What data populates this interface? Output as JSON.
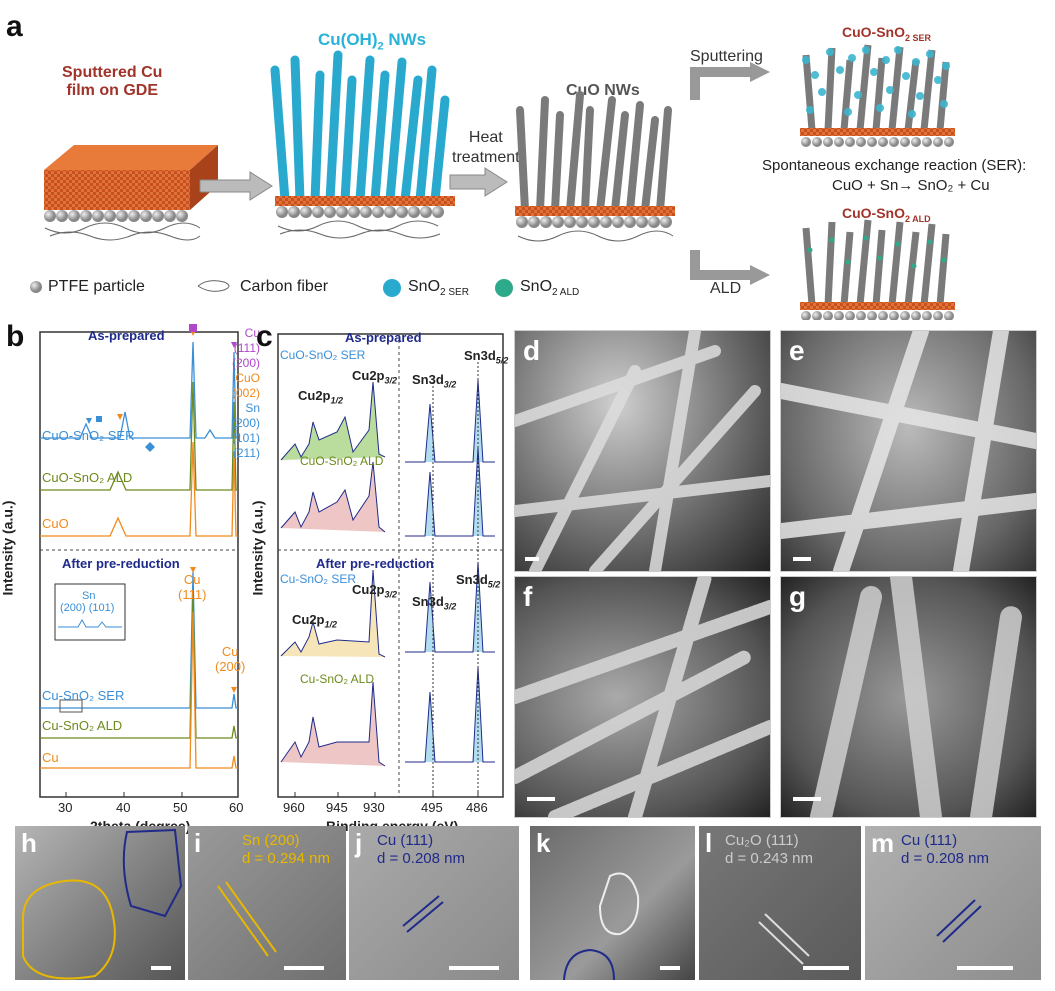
{
  "panel_labels": {
    "a": "a",
    "b": "b",
    "c": "c",
    "d": "d",
    "e": "e",
    "f": "f",
    "g": "g",
    "h": "h",
    "i": "i",
    "j": "j",
    "k": "k",
    "l": "l",
    "m": "m"
  },
  "schematic": {
    "cu_film_line1": "Sputtered Cu",
    "cu_film_line2": "film on GDE",
    "cuoh2_label": "Cu(OH)",
    "cuoh2_sub": "2",
    "cuoh2_suffix": " NWs",
    "heat_line1": "Heat",
    "heat_line2": "treatment",
    "cuo_label": "CuO NWs",
    "sputtering": "Sputtering",
    "ald": "ALD",
    "ser_product": "CuO-SnO",
    "ser_product_sub": "2 SER",
    "ald_product": "CuO-SnO",
    "ald_product_sub": "2 ALD",
    "ser_reaction_title": "Spontaneous exchange reaction (SER):",
    "ser_reaction_eq": "CuO + Sn→ SnO₂ + Cu",
    "legend_ptfe": "PTFE particle",
    "legend_carbon": "Carbon fiber",
    "legend_sno2_ser": "SnO",
    "legend_sno2_ser_sub": "2 SER",
    "legend_sno2_ald": "SnO",
    "legend_sno2_ald_sub": "2 ALD",
    "colors": {
      "cu": "#c8501e",
      "cuoh2": "#2aa9cf",
      "cuo": "#7a7a7a",
      "ser": "#3bb6cf",
      "ald": "#2eaa8a",
      "ptfe": "#b5b5b5"
    }
  },
  "xrd": {
    "as_prepared": "As-prepared",
    "after": "After pre-reduction",
    "ylabel": "Intensity (a.u.)",
    "xlabel": "2theta (degree)",
    "xticks": [
      "30",
      "40",
      "50",
      "60"
    ],
    "curves_top": [
      "CuO-SnO₂ SER",
      "CuO-SnO₂ ALD",
      "CuO"
    ],
    "curves_bottom": [
      "Cu-SnO₂ SER",
      "Cu-SnO₂ ALD",
      "Cu"
    ],
    "legend_cu": "Cu",
    "legend_cu_111": "(111)",
    "legend_cu_200": "(200)",
    "legend_cuo": "CuO",
    "legend_cuo_002": "(002)",
    "legend_sn": "Sn",
    "legend_sn_200": "(200)",
    "legend_sn_101": "(101)",
    "legend_sn_211": "(211)",
    "inset_sn": "Sn",
    "inset_peaks": "(200) (101)",
    "inset_ticks": [
      "28",
      "30",
      "32",
      "34"
    ],
    "cu111": "Cu",
    "cu111b": "(111)",
    "cu200": "Cu",
    "cu200b": "(200)"
  },
  "xps": {
    "as_prepared": "As-prepared",
    "after": "After pre-reduction",
    "ylabel": "Intensity (a.u.)",
    "xlabel": "Binding energy (eV)",
    "xticks": [
      "960",
      "945",
      "930",
      "495",
      "486"
    ],
    "curves_top": [
      "CuO-SnO₂ SER",
      "CuO-SnO₂ ALD"
    ],
    "curves_bottom": [
      "Cu-SnO₂ SER",
      "Cu-SnO₂ ALD"
    ],
    "cu2p12": "Cu2p",
    "cu2p12_sub": "1/2",
    "cu2p32": "Cu2p",
    "cu2p32_sub": "3/2",
    "sn3d32": "Sn3d",
    "sn3d32_sub": "3/2",
    "sn3d52": "Sn3d",
    "sn3d52_sub": "5/2"
  },
  "tem": {
    "i_line1": "Sn (200)",
    "i_line2": "d = 0.294 nm",
    "j_line1": "Cu (111)",
    "j_line2": "d = 0.208 nm",
    "l_line1": "Cu₂O (111)",
    "l_line2": "d = 0.243 nm",
    "m_line1": "Cu (111)",
    "m_line2": "d = 0.208 nm"
  }
}
